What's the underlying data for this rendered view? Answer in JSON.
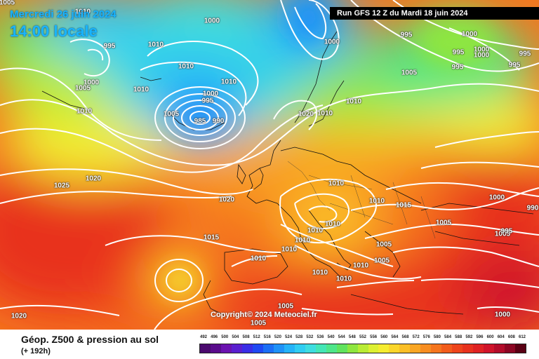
{
  "header": {
    "date": "Mercredi 26 juin 2024",
    "time": "14:00 locale",
    "run": "Run GFS 12 Z du Mardi 18 juin 2024"
  },
  "copyright": "Copyright© 2024 Meteociel.fr",
  "footer": {
    "title": "Géop. Z500 & pression au sol",
    "subtitle": "(+ 192h)"
  },
  "legend": {
    "ticks": [
      "492",
      "496",
      "500",
      "504",
      "508",
      "512",
      "516",
      "520",
      "524",
      "528",
      "532",
      "536",
      "540",
      "544",
      "548",
      "552",
      "556",
      "560",
      "564",
      "568",
      "572",
      "576",
      "580",
      "584",
      "588",
      "592",
      "596",
      "600",
      "604",
      "608",
      "612"
    ],
    "colors": [
      "#4b0a6e",
      "#5a0c8c",
      "#6b13b0",
      "#5a1fcf",
      "#3a2ee6",
      "#2049f2",
      "#1c6ff5",
      "#1f92f7",
      "#25b3f8",
      "#30cdf2",
      "#3edde0",
      "#44e6b6",
      "#4ee68a",
      "#61e35e",
      "#8ee63f",
      "#b9ec35",
      "#ddf032",
      "#f5ec30",
      "#fbd62b",
      "#fbbf27",
      "#f9a624",
      "#f78d21",
      "#f5751e",
      "#f25c1c",
      "#ee451c",
      "#e8321e",
      "#df2223",
      "#d0142a",
      "#b30c2a",
      "#8c0623",
      "#5a0014"
    ]
  },
  "pressure_labels": [
    "1005",
    "1010",
    "995",
    "1010",
    "1010",
    "1000",
    "1005",
    "1010",
    "1010",
    "1000",
    "995",
    "1005",
    "1010",
    "1000",
    "985",
    "990",
    "1020",
    "1010",
    "1000",
    "995",
    "1000",
    "995",
    "1000",
    "1005",
    "1000",
    "995",
    "995",
    "1010",
    "1025",
    "1020",
    "1020",
    "1015",
    "1010",
    "1015",
    "1000",
    "1010",
    "1010",
    "1010",
    "1010",
    "1010",
    "1005",
    "1005",
    "1005",
    "1010",
    "1010",
    "1010",
    "990",
    "1005",
    "995",
    "995",
    "1010",
    "1005",
    "1020",
    "1005",
    "1000"
  ]
}
